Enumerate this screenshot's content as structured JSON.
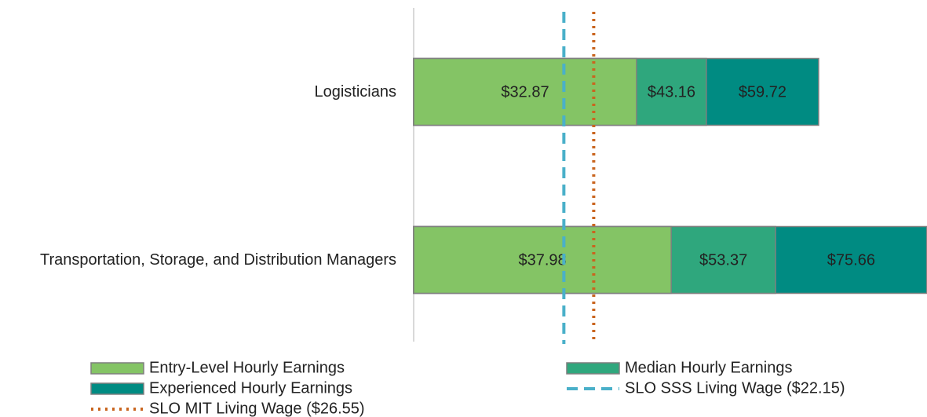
{
  "chart_data": {
    "type": "bar",
    "orientation": "horizontal",
    "overlap": true,
    "categories": [
      "Logisticians",
      "Transportation, Storage, and Distribution Managers"
    ],
    "series": [
      {
        "name": "Entry-Level Hourly Earnings",
        "color": "#84c465",
        "values": [
          32.87,
          37.98
        ],
        "value_labels": [
          "$32.87",
          "$37.98"
        ]
      },
      {
        "name": "Median Hourly Earnings",
        "color": "#2fa77d",
        "values": [
          43.16,
          53.37
        ],
        "value_labels": [
          "$43.16",
          "$53.37"
        ]
      },
      {
        "name": "Experienced Hourly Earnings",
        "color": "#008b82",
        "values": [
          59.72,
          75.66
        ],
        "value_labels": [
          "$59.72",
          "$75.66"
        ]
      }
    ],
    "reference_lines": [
      {
        "name": "SLO SSS Living Wage ($22.15)",
        "value": 22.15,
        "color": "#4ab0c9",
        "style": "dashed"
      },
      {
        "name": "SLO MIT Living Wage ($26.55)",
        "value": 26.55,
        "color": "#c9651f",
        "style": "dotted"
      }
    ],
    "xlim": [
      0,
      75.7
    ]
  }
}
